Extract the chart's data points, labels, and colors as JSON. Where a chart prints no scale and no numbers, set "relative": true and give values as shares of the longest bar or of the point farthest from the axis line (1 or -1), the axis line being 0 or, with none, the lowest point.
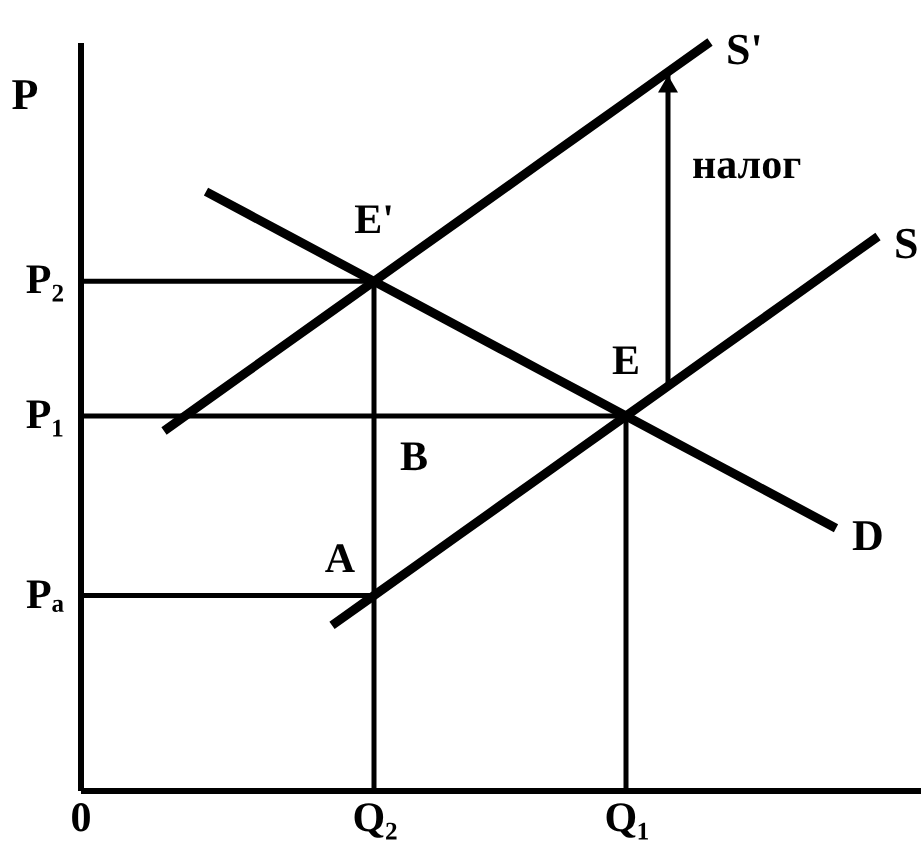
{
  "chart_data": {
    "type": "line",
    "relative": true,
    "ylabel": "P",
    "categories": [
      "0",
      null,
      null,
      null,
      null,
      null,
      null,
      "Q₂",
      null,
      null,
      null,
      null,
      null,
      "Q₁",
      null,
      null,
      null,
      null,
      null,
      null,
      null
    ],
    "line_style": "solid",
    "series": [
      {
        "name": "S",
        "color": "#000000",
        "values": [
          null,
          null,
          null,
          null,
          null,
          null,
          0.22,
          0.26,
          0.3,
          0.34,
          0.38,
          0.42,
          0.46,
          0.5,
          0.54,
          0.58,
          0.62,
          0.66,
          0.7,
          0.74,
          null
        ]
      },
      {
        "name": "S'",
        "color": "#000000",
        "values": [
          null,
          null,
          0.48,
          0.52,
          0.56,
          0.6,
          0.64,
          0.68,
          0.72,
          0.76,
          0.8,
          0.84,
          0.88,
          0.92,
          0.96,
          1,
          null,
          null,
          null,
          null,
          null
        ]
      },
      {
        "name": "D",
        "color": "#000000",
        "values": [
          null,
          null,
          null,
          0.8,
          0.77,
          0.74,
          0.71,
          0.68,
          0.65,
          0.62,
          0.59,
          0.56,
          0.53,
          0.5,
          0.47,
          0.44,
          0.41,
          0.38,
          0.35,
          null,
          null
        ]
      },
      {
        "color": "#000000",
        "values": [
          0.68,
          0.68,
          0.68,
          0.68,
          0.68,
          0.68,
          0.68,
          0.68,
          null,
          null,
          null,
          null,
          null,
          null,
          null,
          null,
          null,
          null,
          null,
          null,
          null
        ]
      },
      {
        "color": "#000000",
        "values": [
          0.5,
          0.5,
          0.5,
          0.5,
          0.5,
          0.5,
          0.5,
          0.5,
          0.5,
          0.5,
          0.5,
          0.5,
          0.5,
          0.5,
          null,
          null,
          null,
          null,
          null,
          null,
          null
        ]
      },
      {
        "color": "#000000",
        "values": [
          0.26,
          0.26,
          0.26,
          0.26,
          0.26,
          0.26,
          0.26,
          0.26,
          null,
          null,
          null,
          null,
          null,
          null,
          null,
          null,
          null,
          null,
          null,
          null,
          null
        ]
      },
      {
        "color": "#000000",
        "x": [
          "Q₂",
          "Q₂"
        ],
        "values": [
          0,
          0.68
        ]
      },
      {
        "color": "#000000",
        "x": [
          "Q₁",
          "Q₁"
        ],
        "values": [
          0,
          0.5
        ]
      }
    ],
    "annotations": [
      {
        "text": "P₂",
        "x": "0",
        "y": 0.68
      },
      {
        "text": "P₁",
        "x": "0",
        "y": 0.5
      },
      {
        "text": "Pₐ",
        "x": "0",
        "y": 0.26
      },
      {
        "text": "E'",
        "x": "Q₂",
        "y": 0.68
      },
      {
        "text": "E",
        "x": "Q₁",
        "y": 0.5
      },
      {
        "text": "A",
        "x": "Q₂",
        "y": 0.26
      },
      {
        "text": "B",
        "x": "Q₂",
        "y": 0.5
      },
      "налог"
    ]
  }
}
